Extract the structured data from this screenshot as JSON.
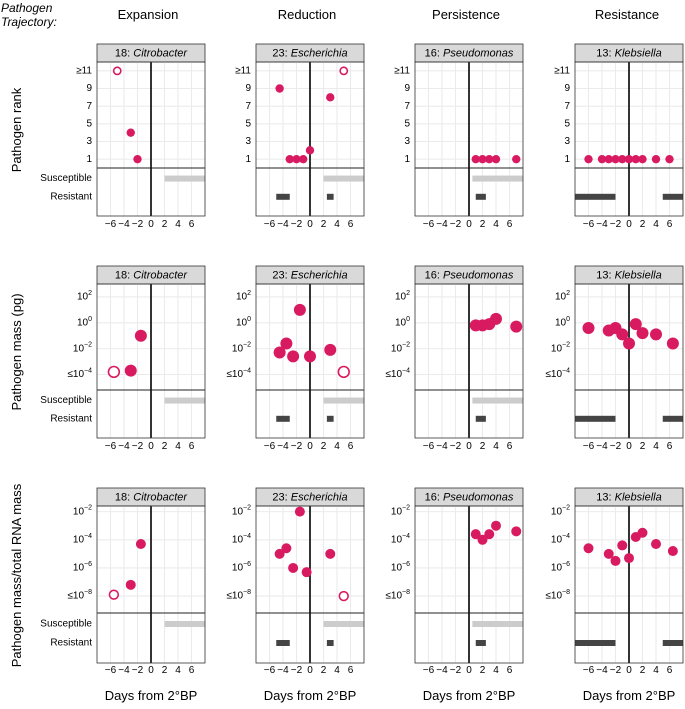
{
  "legend_title_line1": "Pathogen",
  "legend_title_line2": "Trajectory:",
  "column_headers": [
    "Expansion",
    "Reduction",
    "Persistence",
    "Resistance"
  ],
  "colors": {
    "point": "#d81b60",
    "susceptible_bar": "#cccccc",
    "resistant_bar": "#444444",
    "strip_bg": "#d9d9d9",
    "grid": "#ebebeb"
  },
  "chart_data": {
    "type": "scatter",
    "x": {
      "label": "Days from 2°BP",
      "range": [
        -8,
        8
      ],
      "ticks": [
        -6,
        -4,
        -2,
        0,
        2,
        4,
        6
      ],
      "tick_labels": [
        "−6",
        "−4",
        "−2",
        "0",
        "2",
        "4",
        "6"
      ]
    },
    "bar_labels": [
      "Susceptible",
      "Resistant"
    ],
    "panels": [
      {
        "pathogen": "18: Citrobacter",
        "number": "18",
        "genus": "Citrobacter"
      },
      {
        "pathogen": "23: Escherichia",
        "number": "23",
        "genus": "Escherichia"
      },
      {
        "pathogen": "16: Pseudomonas",
        "number": "16",
        "genus": "Pseudomonas"
      },
      {
        "pathogen": "13: Klebsiella",
        "number": "13",
        "genus": "Klebsiella"
      }
    ],
    "rows": [
      {
        "ylabel": "Pathogen rank",
        "ylim": [
          12,
          0
        ],
        "ticks": [
          1,
          3,
          5,
          7,
          9,
          11
        ],
        "tick_labels": [
          "1",
          "3",
          "5",
          "7",
          "9",
          "≥11"
        ],
        "point_size": "small",
        "series": [
          [
            {
              "x": -2,
              "y": 1
            },
            {
              "x": -3,
              "y": 4
            },
            {
              "x": -5,
              "y": 11,
              "open": true
            }
          ],
          [
            {
              "x": -3,
              "y": 1
            },
            {
              "x": -2,
              "y": 1
            },
            {
              "x": -1,
              "y": 1
            },
            {
              "x": 0,
              "y": 2
            },
            {
              "x": -4.5,
              "y": 9
            },
            {
              "x": 3,
              "y": 8
            },
            {
              "x": 5,
              "y": 11,
              "open": true
            }
          ],
          [
            {
              "x": 1,
              "y": 1
            },
            {
              "x": 2,
              "y": 1
            },
            {
              "x": 3,
              "y": 1
            },
            {
              "x": 4,
              "y": 1
            },
            {
              "x": 7,
              "y": 1
            }
          ],
          [
            {
              "x": -6,
              "y": 1
            },
            {
              "x": -4,
              "y": 1
            },
            {
              "x": -3,
              "y": 1
            },
            {
              "x": -2,
              "y": 1
            },
            {
              "x": -1,
              "y": 1
            },
            {
              "x": 0,
              "y": 1
            },
            {
              "x": 1,
              "y": 1
            },
            {
              "x": 2,
              "y": 1
            },
            {
              "x": 4,
              "y": 1
            },
            {
              "x": 6,
              "y": 1
            }
          ]
        ]
      },
      {
        "ylabel": "Pathogen mass (pg)",
        "ylim": [
          3,
          -5.2
        ],
        "ticks": [
          2,
          0,
          -2,
          -4
        ],
        "tick_labels": [
          "10^2",
          "10^0",
          "10^-2",
          "≤10^-4"
        ],
        "point_size": "large",
        "series": [
          [
            {
              "x": -1.5,
              "y": -1.0
            },
            {
              "x": -3,
              "y": -3.7
            },
            {
              "x": -5.5,
              "y": -3.8,
              "open": true
            }
          ],
          [
            {
              "x": -1.5,
              "y": 1.0
            },
            {
              "x": -3.5,
              "y": -1.6
            },
            {
              "x": -4.5,
              "y": -2.3
            },
            {
              "x": -2.5,
              "y": -2.6
            },
            {
              "x": 0,
              "y": -2.6
            },
            {
              "x": 3,
              "y": -2.1
            },
            {
              "x": 5,
              "y": -3.8,
              "open": true
            }
          ],
          [
            {
              "x": 1,
              "y": -0.2
            },
            {
              "x": 2,
              "y": -0.2
            },
            {
              "x": 3,
              "y": -0.1
            },
            {
              "x": 4,
              "y": 0.3
            },
            {
              "x": 7,
              "y": -0.3
            }
          ],
          [
            {
              "x": -6,
              "y": -0.4
            },
            {
              "x": -3,
              "y": -0.6
            },
            {
              "x": -2,
              "y": -0.4
            },
            {
              "x": -1,
              "y": -0.9
            },
            {
              "x": 0,
              "y": -1.6
            },
            {
              "x": 1,
              "y": -0.1
            },
            {
              "x": 2,
              "y": -0.8
            },
            {
              "x": 4,
              "y": -0.9
            },
            {
              "x": 6.5,
              "y": -1.6
            }
          ]
        ]
      },
      {
        "ylabel": "Pathogen mass/total RNA mass",
        "ylim": [
          -1.6,
          -9.2
        ],
        "ticks": [
          -2,
          -4,
          -6,
          -8
        ],
        "tick_labels": [
          "10^-2",
          "10^-4",
          "10^-6",
          "≤10^-8"
        ],
        "point_size": "medium",
        "series": [
          [
            {
              "x": -1.5,
              "y": -4.3
            },
            {
              "x": -3,
              "y": -7.2
            },
            {
              "x": -5.5,
              "y": -7.9,
              "open": true
            }
          ],
          [
            {
              "x": -1.5,
              "y": -2.0
            },
            {
              "x": -3.5,
              "y": -4.6
            },
            {
              "x": -4.5,
              "y": -5.0
            },
            {
              "x": -2.5,
              "y": -6.0
            },
            {
              "x": -0.5,
              "y": -6.3
            },
            {
              "x": 3,
              "y": -5.0
            },
            {
              "x": 5,
              "y": -8.0,
              "open": true
            }
          ],
          [
            {
              "x": 1,
              "y": -3.6
            },
            {
              "x": 2,
              "y": -4.0
            },
            {
              "x": 3,
              "y": -3.6
            },
            {
              "x": 4,
              "y": -3.0
            },
            {
              "x": 7,
              "y": -3.4
            }
          ],
          [
            {
              "x": -6,
              "y": -4.6
            },
            {
              "x": -3,
              "y": -5.0
            },
            {
              "x": -2,
              "y": -5.5
            },
            {
              "x": -1,
              "y": -4.4
            },
            {
              "x": 0,
              "y": -5.3
            },
            {
              "x": 1,
              "y": -3.8
            },
            {
              "x": 2,
              "y": -3.5
            },
            {
              "x": 4,
              "y": -4.3
            },
            {
              "x": 6.5,
              "y": -4.8
            }
          ]
        ]
      }
    ],
    "resistance_bars": [
      {
        "susceptible": [
          [
            2,
            8
          ]
        ],
        "resistant": []
      },
      {
        "susceptible": [
          [
            2,
            8
          ]
        ],
        "resistant": [
          [
            -5,
            -3
          ],
          [
            2.5,
            3.5
          ]
        ]
      },
      {
        "susceptible": [
          [
            0.5,
            8
          ]
        ],
        "resistant": [
          [
            1,
            2.5
          ]
        ]
      },
      {
        "susceptible": [],
        "resistant": [
          [
            -8,
            -2
          ],
          [
            5,
            8
          ]
        ]
      }
    ]
  }
}
